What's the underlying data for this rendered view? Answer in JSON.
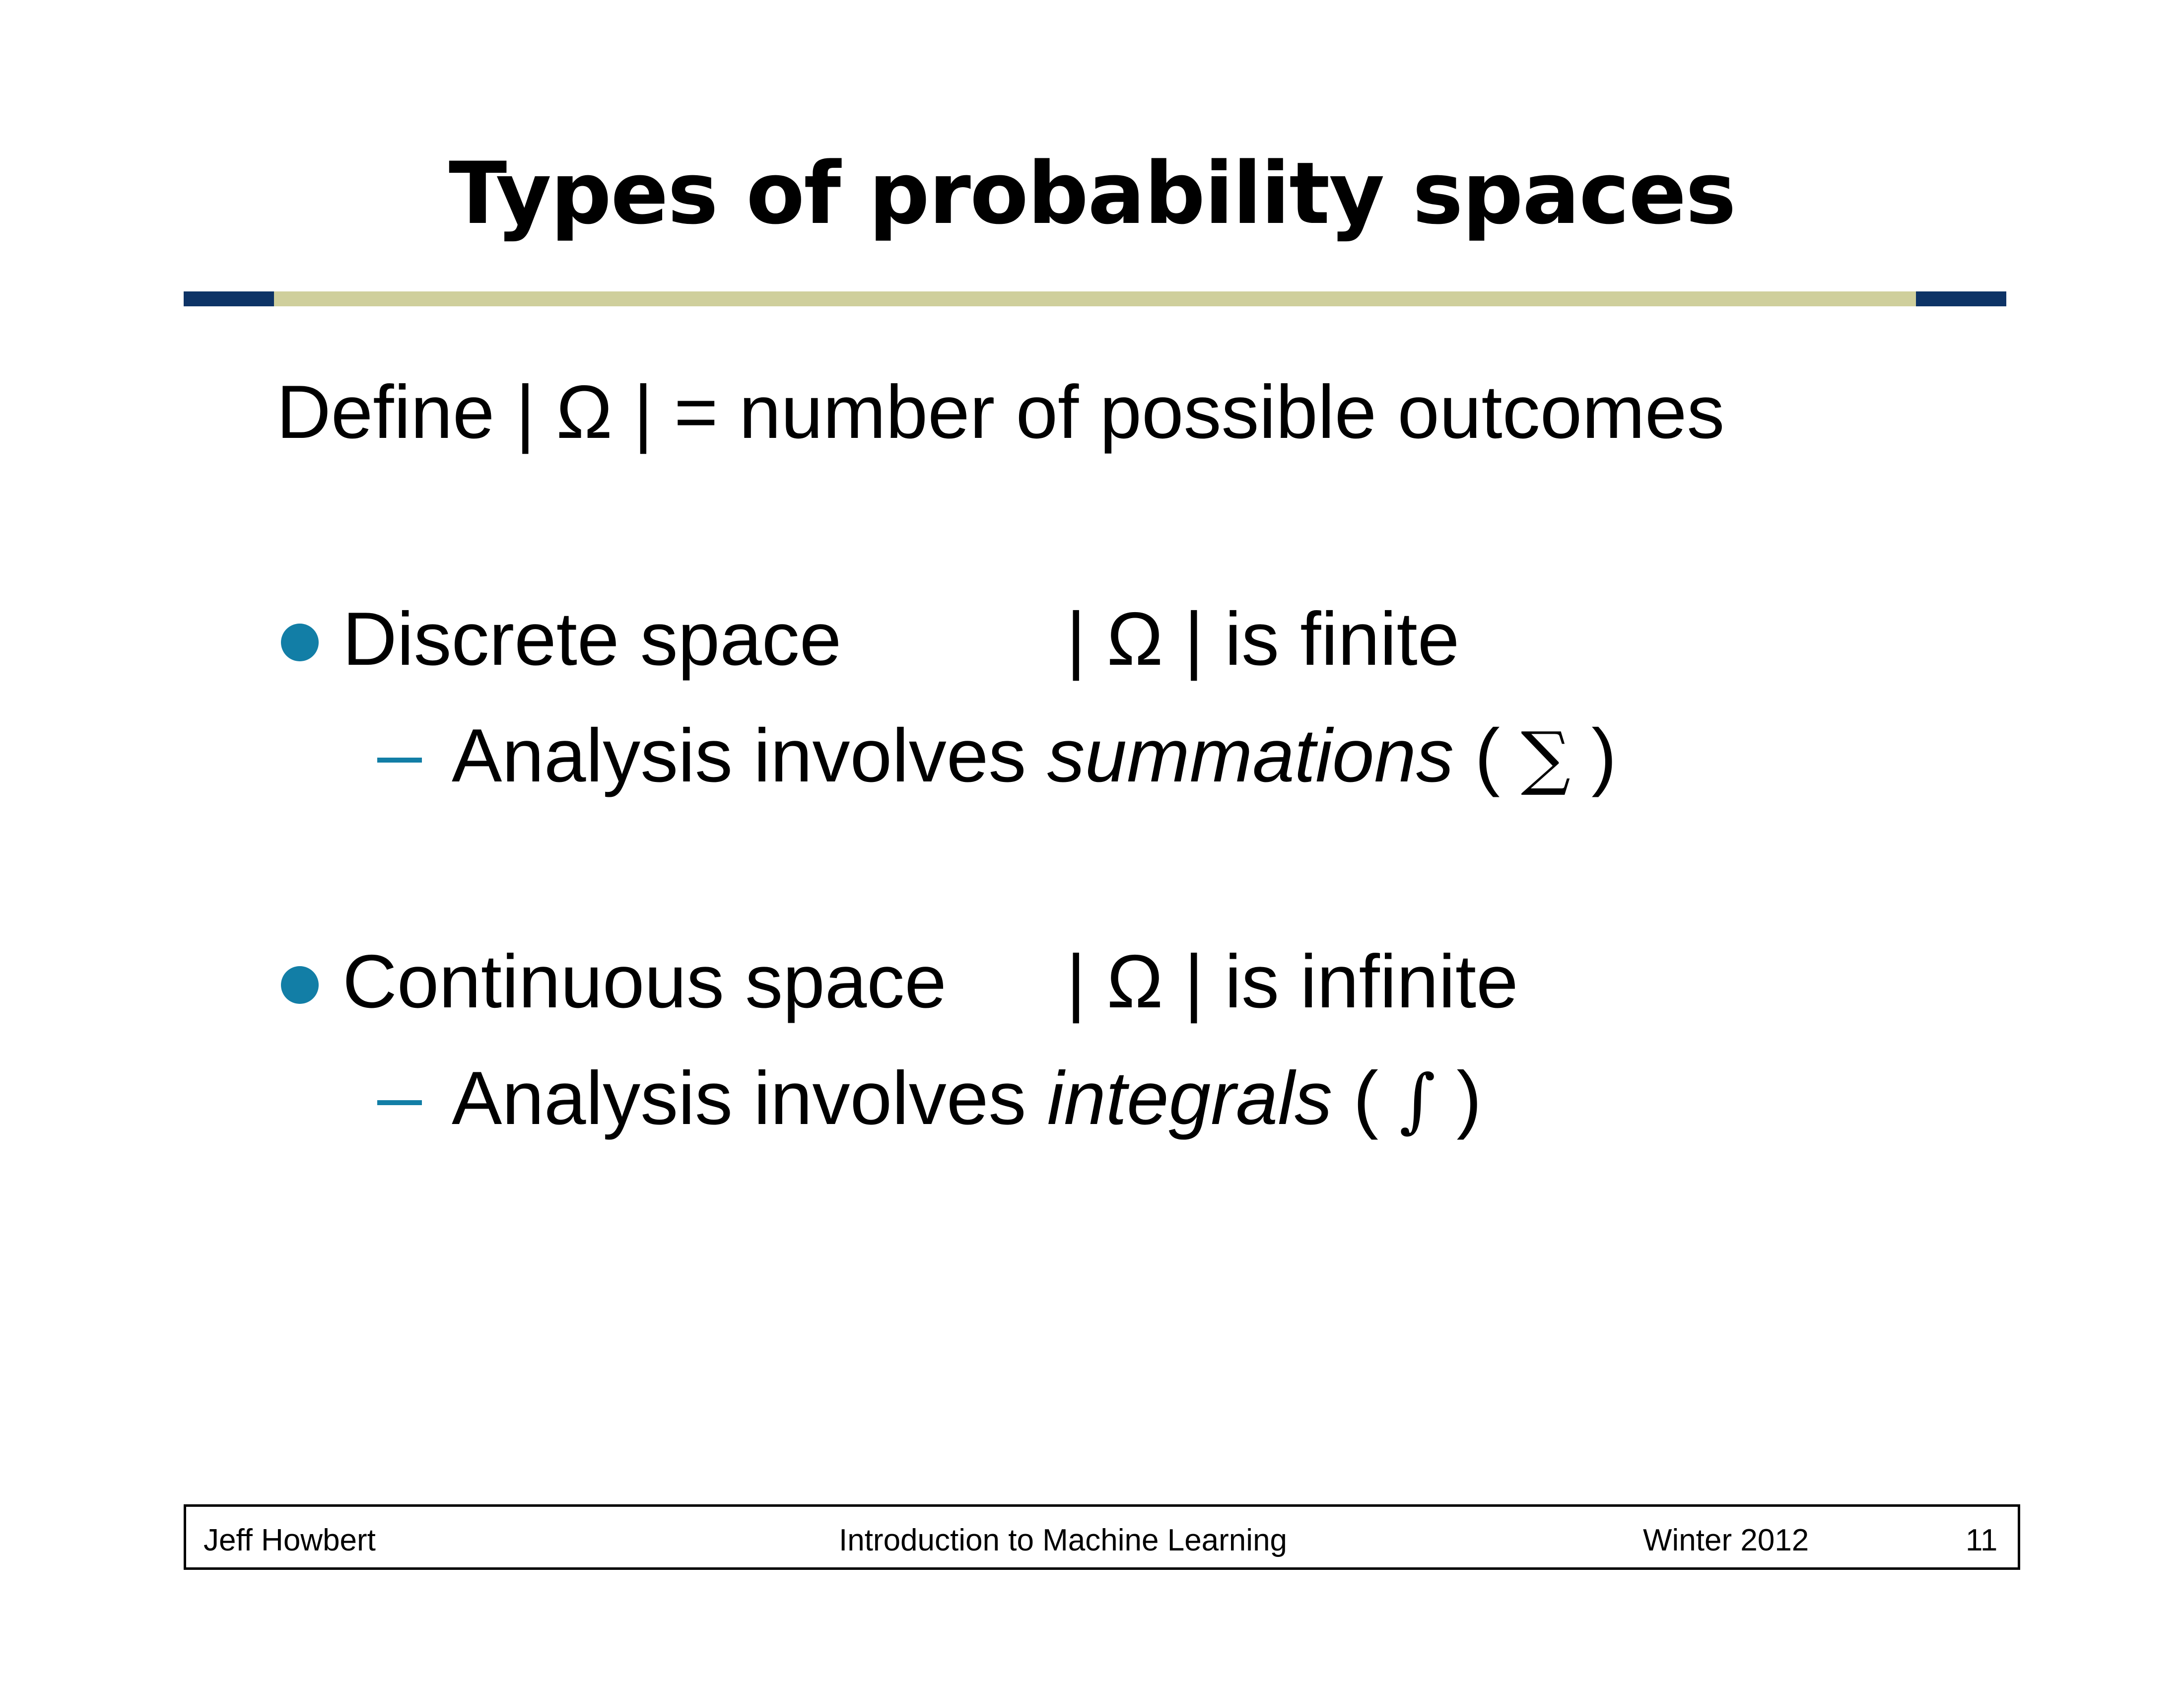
{
  "slide": {
    "title": "Types of probability spaces",
    "definition": "Define | Ω | = number of possible outcomes",
    "bullets": [
      {
        "label": "Discrete space",
        "value": "| Ω | is finite",
        "sub": {
          "prefix": "Analysis involves ",
          "emphasis": "summations",
          "open": " ( ",
          "symbol": "∑",
          "close": " )"
        }
      },
      {
        "label": "Continuous space",
        "value": "| Ω | is infinite",
        "sub": {
          "prefix": "Analysis involves ",
          "emphasis": "integrals",
          "open": " ( ",
          "symbol": "∫",
          "close": " )"
        }
      }
    ]
  },
  "footer": {
    "author": "Jeff Howbert",
    "course": "Introduction to Machine Learning",
    "term": "Winter 2012",
    "page": "11"
  },
  "colors": {
    "rule_dark": "#0d3366",
    "rule_light": "#cfcf9c",
    "bullet": "#127ea6",
    "dash": "#127ea6"
  }
}
